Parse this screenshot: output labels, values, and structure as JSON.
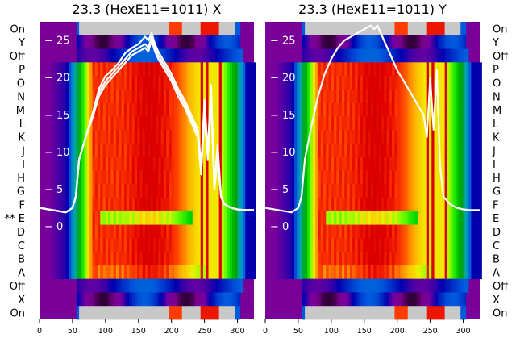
{
  "chart_data": [
    {
      "type": "heatmap",
      "title": "23.3 (HexE11=1011) X",
      "xlabel": "",
      "ylabel": "",
      "xlim": [
        0,
        325
      ],
      "xticks": [
        0,
        50,
        100,
        150,
        200,
        250,
        300
      ],
      "ylim": [
        -12.5,
        27.5
      ],
      "yticks": [
        0,
        5,
        10,
        15,
        20,
        25
      ],
      "row_labels": [
        "On",
        "Y",
        "Off",
        "P",
        "O",
        "N",
        "M",
        "L",
        "K",
        "J",
        "I",
        "H",
        "G",
        "F",
        "** E",
        "D",
        "C",
        "B",
        "A",
        "Off",
        "X",
        "On"
      ],
      "row_label_side": "left",
      "colormap": "nipy_spectral",
      "grid": false,
      "series": [
        {
          "x": [
            0,
            20,
            40,
            50,
            55,
            60,
            70,
            80,
            90,
            100,
            110,
            120,
            130,
            140,
            150,
            160,
            165,
            170,
            175,
            180,
            190,
            200,
            210,
            220,
            230,
            240,
            245,
            250,
            255,
            260,
            265,
            270,
            275,
            280,
            290,
            300,
            310,
            325
          ],
          "values": [
            2.5,
            2.2,
            1.9,
            2.5,
            4,
            9,
            12,
            15,
            18.5,
            20.2,
            21,
            22,
            23.3,
            24,
            24.5,
            25.5,
            25,
            26,
            24.5,
            23.5,
            22,
            20.5,
            18.5,
            17,
            15,
            13,
            8,
            17,
            10,
            19,
            6,
            11,
            4,
            3,
            2.5,
            2.3,
            2.2,
            2.2
          ]
        },
        {
          "x": [
            0,
            20,
            40,
            50,
            55,
            60,
            70,
            80,
            90,
            100,
            110,
            120,
            130,
            140,
            150,
            160,
            165,
            170,
            175,
            180,
            190,
            200,
            210,
            220,
            230,
            240,
            245,
            250,
            255,
            260,
            265,
            270,
            275,
            280,
            290,
            300,
            310,
            325
          ],
          "values": [
            2.5,
            2.2,
            1.9,
            2.5,
            4,
            9,
            12,
            15,
            18,
            19.5,
            20.5,
            21.5,
            22.5,
            23.5,
            24,
            24.5,
            24,
            25.5,
            24,
            23,
            21.5,
            20,
            18,
            16.5,
            14.5,
            12.5,
            7.5,
            16,
            9.5,
            18,
            5.5,
            10,
            4,
            3,
            2.5,
            2.3,
            2.2,
            2.2
          ]
        },
        {
          "x": [
            0,
            20,
            40,
            50,
            55,
            60,
            70,
            80,
            90,
            100,
            110,
            120,
            130,
            140,
            150,
            160,
            165,
            170,
            175,
            180,
            190,
            200,
            210,
            220,
            230,
            240,
            245,
            250,
            255,
            260,
            265,
            270,
            275,
            280,
            290,
            300,
            310,
            325
          ],
          "values": [
            2.5,
            2.2,
            1.9,
            2.5,
            4,
            9,
            12,
            14.5,
            17.5,
            19,
            20,
            21,
            22,
            23,
            23.5,
            24,
            23.5,
            25,
            23.5,
            22.5,
            21,
            19.5,
            17.5,
            16,
            14,
            12,
            7,
            15,
            9,
            17,
            5,
            9,
            4,
            3,
            2.5,
            2.3,
            2.2,
            2.2
          ]
        }
      ]
    },
    {
      "type": "heatmap",
      "title": "23.3 (HexE11=1011) Y",
      "xlabel": "",
      "ylabel": "",
      "xlim": [
        0,
        325
      ],
      "xticks": [
        0,
        50,
        100,
        150,
        200,
        250,
        300
      ],
      "ylim": [
        -12.5,
        27.5
      ],
      "yticks": [
        0,
        5,
        10,
        15,
        20,
        25
      ],
      "row_labels": [
        "On",
        "Y",
        "Off",
        "P",
        "O",
        "N",
        "M",
        "L",
        "K",
        "J",
        "I",
        "H",
        "G",
        "F",
        "E",
        "D",
        "C",
        "B",
        "A",
        "Off",
        "X",
        "On"
      ],
      "row_label_side": "right",
      "colormap": "nipy_spectral",
      "grid": false,
      "series": [
        {
          "x": [
            0,
            20,
            40,
            50,
            55,
            60,
            70,
            80,
            90,
            100,
            110,
            120,
            130,
            140,
            150,
            160,
            165,
            170,
            175,
            180,
            190,
            200,
            210,
            220,
            230,
            240,
            245,
            250,
            255,
            260,
            265,
            270,
            275,
            280,
            290,
            300,
            310,
            325
          ],
          "values": [
            2.5,
            2.2,
            1.9,
            2.5,
            4,
            9,
            13.5,
            17.5,
            20.5,
            22.5,
            24,
            25,
            25.5,
            26,
            26.5,
            27,
            26.5,
            27,
            26,
            25,
            23,
            21,
            19.5,
            18,
            16.5,
            15,
            12,
            20,
            13,
            21,
            8,
            4,
            3.5,
            3,
            2.5,
            2.3,
            2.2,
            2.2
          ]
        }
      ]
    }
  ]
}
